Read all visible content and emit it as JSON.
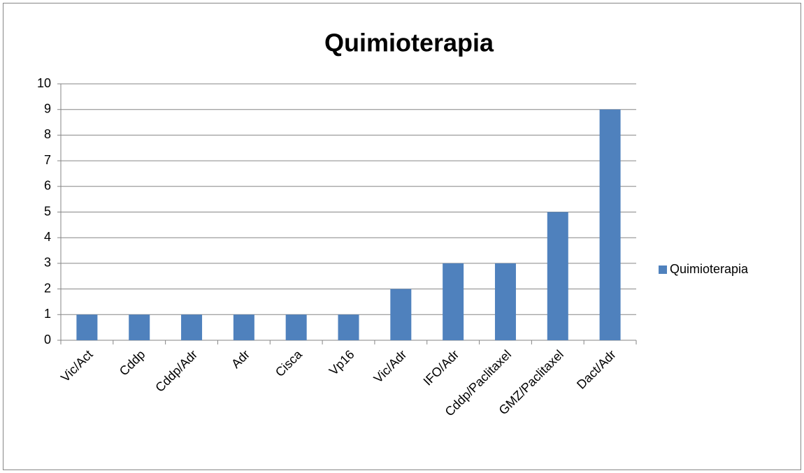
{
  "chart_data": {
    "type": "bar",
    "title": "Quimioterapia",
    "categories": [
      "Vic/Act",
      "Cddp",
      "Cddp/Adr",
      "Adr",
      "Cisca",
      "Vp16",
      "Vic/Adr",
      "IFO/Adr",
      "Cddp/Paclitaxel",
      "GMZ/Paclitaxel",
      "Dact/Adr"
    ],
    "series": [
      {
        "name": "Quimioterapia",
        "color": "#4f81bd",
        "values": [
          1,
          1,
          1,
          1,
          1,
          1,
          2,
          3,
          3,
          5,
          9
        ]
      }
    ],
    "ylim": [
      0,
      10
    ],
    "yticks": [
      0,
      1,
      2,
      3,
      4,
      5,
      6,
      7,
      8,
      9,
      10
    ],
    "grid": true,
    "legend": "right"
  }
}
